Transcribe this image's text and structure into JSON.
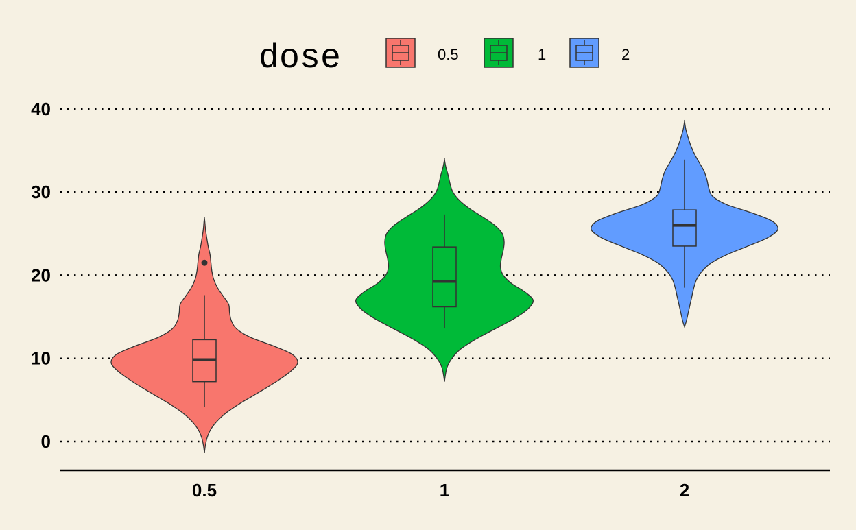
{
  "chart_data": {
    "type": "violin",
    "title": "",
    "xlabel": "",
    "ylabel": "",
    "ylim": [
      -3.4,
      42.5
    ],
    "yticks": [
      0,
      10,
      20,
      30,
      40
    ],
    "grid": "horizontal-dotted",
    "legend": {
      "title": "dose",
      "placement": "top",
      "entries": [
        {
          "label": "0.5",
          "color": "#f8766d"
        },
        {
          "label": "1",
          "color": "#00ba38"
        },
        {
          "label": "2",
          "color": "#619cff"
        }
      ]
    },
    "categories": [
      "0.5",
      "1",
      "2"
    ],
    "series": [
      {
        "category": "0.5",
        "color": "#f8766d",
        "box": {
          "min": 4.2,
          "q1": 7.2,
          "median": 9.85,
          "q3": 12.25,
          "max": 17.6
        },
        "outliers": [
          21.5
        ],
        "density": [
          [
            -1.4,
            0.0
          ],
          [
            -0.5,
            0.01
          ],
          [
            0.5,
            0.03
          ],
          [
            1.5,
            0.07
          ],
          [
            2.5,
            0.14
          ],
          [
            3.5,
            0.24
          ],
          [
            4.5,
            0.37
          ],
          [
            5.5,
            0.52
          ],
          [
            6.5,
            0.67
          ],
          [
            7.5,
            0.81
          ],
          [
            8.5,
            0.93
          ],
          [
            9.5,
            1.0
          ],
          [
            10.5,
            0.94
          ],
          [
            11.5,
            0.74
          ],
          [
            12.5,
            0.5
          ],
          [
            13.5,
            0.35
          ],
          [
            14.5,
            0.29
          ],
          [
            15.5,
            0.27
          ],
          [
            16.5,
            0.26
          ],
          [
            17.5,
            0.2
          ],
          [
            18.5,
            0.14
          ],
          [
            19.5,
            0.1
          ],
          [
            20.5,
            0.08
          ],
          [
            21.5,
            0.07
          ],
          [
            22.5,
            0.06
          ],
          [
            23.5,
            0.04
          ],
          [
            24.5,
            0.025
          ],
          [
            25.5,
            0.012
          ],
          [
            26.5,
            0.004
          ],
          [
            26.9,
            0.0
          ]
        ]
      },
      {
        "category": "1",
        "color": "#00ba38",
        "box": {
          "min": 13.6,
          "q1": 16.2,
          "median": 19.25,
          "q3": 23.4,
          "max": 27.3
        },
        "outliers": [],
        "density": [
          [
            7.2,
            0.0
          ],
          [
            8.0,
            0.01
          ],
          [
            9.0,
            0.03
          ],
          [
            10.0,
            0.08
          ],
          [
            11.0,
            0.16
          ],
          [
            12.0,
            0.29
          ],
          [
            13.0,
            0.45
          ],
          [
            14.0,
            0.62
          ],
          [
            15.0,
            0.78
          ],
          [
            16.0,
            0.9
          ],
          [
            17.0,
            0.95
          ],
          [
            18.0,
            0.86
          ],
          [
            19.0,
            0.72
          ],
          [
            20.0,
            0.63
          ],
          [
            21.0,
            0.6
          ],
          [
            22.0,
            0.61
          ],
          [
            23.0,
            0.63
          ],
          [
            24.0,
            0.64
          ],
          [
            25.0,
            0.62
          ],
          [
            26.0,
            0.54
          ],
          [
            27.0,
            0.41
          ],
          [
            28.0,
            0.27
          ],
          [
            29.0,
            0.16
          ],
          [
            30.0,
            0.09
          ],
          [
            31.0,
            0.06
          ],
          [
            32.0,
            0.04
          ],
          [
            33.0,
            0.015
          ],
          [
            33.9,
            0.0
          ]
        ]
      },
      {
        "category": "2",
        "color": "#619cff",
        "box": {
          "min": 18.5,
          "q1": 23.5,
          "median": 26.0,
          "q3": 27.85,
          "max": 33.9
        },
        "outliers": [],
        "density": [
          [
            13.8,
            0.0
          ],
          [
            14.5,
            0.02
          ],
          [
            15.5,
            0.04
          ],
          [
            16.5,
            0.06
          ],
          [
            17.5,
            0.08
          ],
          [
            18.5,
            0.1
          ],
          [
            19.5,
            0.13
          ],
          [
            20.5,
            0.19
          ],
          [
            21.5,
            0.29
          ],
          [
            22.5,
            0.46
          ],
          [
            23.5,
            0.68
          ],
          [
            24.5,
            0.89
          ],
          [
            25.5,
            1.0
          ],
          [
            26.5,
            0.94
          ],
          [
            27.5,
            0.72
          ],
          [
            28.5,
            0.45
          ],
          [
            29.5,
            0.3
          ],
          [
            30.5,
            0.26
          ],
          [
            31.5,
            0.24
          ],
          [
            32.5,
            0.21
          ],
          [
            33.5,
            0.16
          ],
          [
            34.5,
            0.11
          ],
          [
            35.5,
            0.07
          ],
          [
            36.5,
            0.04
          ],
          [
            37.5,
            0.015
          ],
          [
            38.5,
            0.0
          ]
        ]
      }
    ]
  }
}
